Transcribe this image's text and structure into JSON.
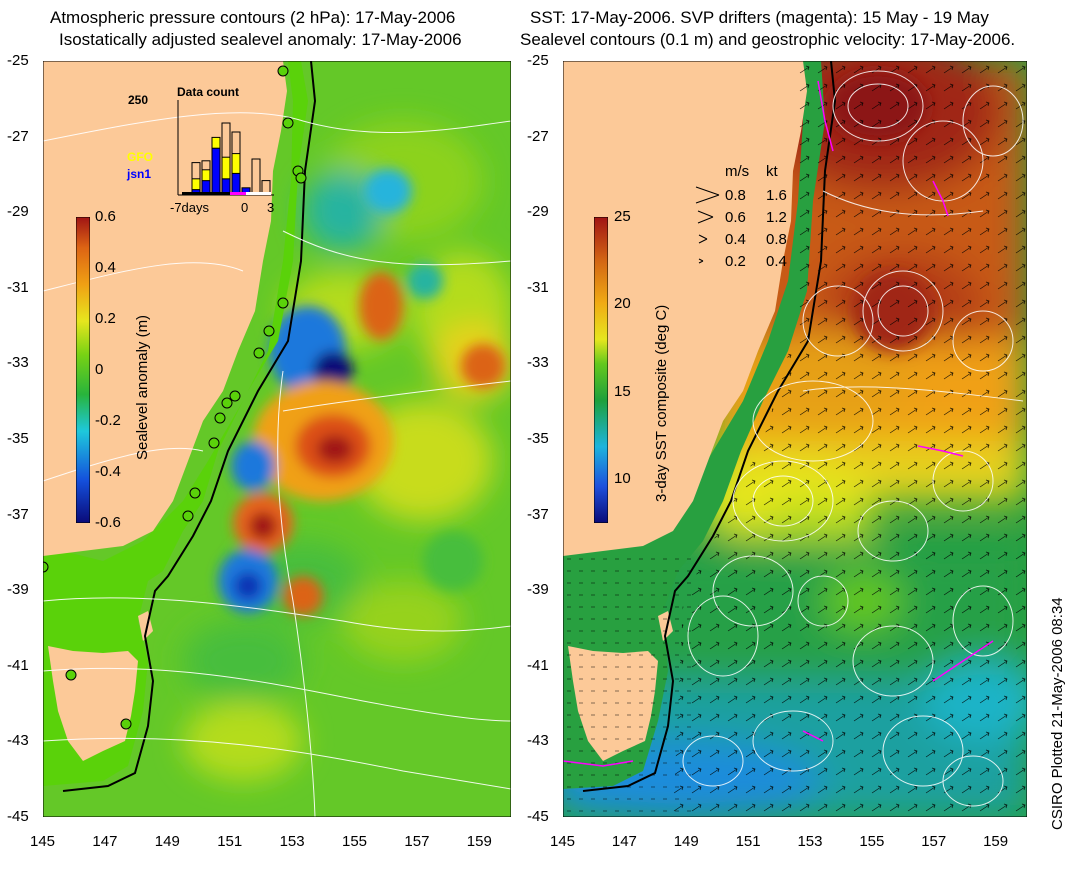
{
  "left_panel": {
    "title_line1": "Atmospheric pressure contours (2 hPa): 17-May-2006",
    "title_line2": "Isostatically adjusted sealevel anomaly: 17-May-2006",
    "colorbar": {
      "title": "Sealevel anomaly (m)",
      "ticks": [
        "0.6",
        "0.4",
        "0.2",
        "0",
        "-0.2",
        "-0.4",
        "-0.6"
      ]
    },
    "inset": {
      "title": "Data count",
      "ymax_label": "250",
      "series": [
        {
          "name": "GFO",
          "color": "#ffff00"
        },
        {
          "name": "jsn1",
          "color": "#0000ff"
        }
      ],
      "x_labels": [
        "-7days",
        "0",
        "3"
      ],
      "days": [
        -6,
        -5,
        -4,
        -3,
        -2,
        -1,
        0,
        1,
        2
      ],
      "gfo": [
        0,
        30,
        30,
        30,
        60,
        55,
        0,
        0,
        0
      ],
      "jsn1": [
        0,
        15,
        40,
        130,
        45,
        60,
        20,
        0,
        0
      ],
      "total": [
        0,
        90,
        95,
        145,
        200,
        175,
        15,
        100,
        40
      ]
    },
    "y_ticks": [
      "-25",
      "-27",
      "-29",
      "-31",
      "-33",
      "-35",
      "-37",
      "-39",
      "-41",
      "-43",
      "-45"
    ],
    "x_ticks": [
      "145",
      "147",
      "149",
      "151",
      "153",
      "155",
      "157",
      "159"
    ]
  },
  "right_panel": {
    "title_line1": "SST: 17-May-2006. SVP drifters (magenta): 15 May - 19 May",
    "title_line2": "Sealevel contours (0.1 m) and geostrophic velocity: 17-May-2006.",
    "colorbar": {
      "title": "3-day SST composite (deg C)",
      "ticks": [
        "25",
        "20",
        "15",
        "10"
      ]
    },
    "velocity_legend": {
      "header_ms": "m/s",
      "header_kt": "kt",
      "rows": [
        {
          "ms": "0.8",
          "kt": "1.6"
        },
        {
          "ms": "0.6",
          "kt": "1.2"
        },
        {
          "ms": "0.4",
          "kt": "0.8"
        },
        {
          "ms": "0.2",
          "kt": "0.4"
        }
      ]
    },
    "y_ticks": [
      "-25",
      "-27",
      "-29",
      "-31",
      "-33",
      "-35",
      "-37",
      "-39",
      "-41",
      "-43",
      "-45"
    ],
    "x_ticks": [
      "145",
      "147",
      "149",
      "151",
      "153",
      "155",
      "157",
      "159"
    ]
  },
  "credit": "CSIRO Plotted 21-May-2006 08:34",
  "colors": {
    "land": "#fcc998",
    "shelf": "#5ad20a",
    "anomaly_scale": [
      "#0a0a78",
      "#1450dc",
      "#1ec8dc",
      "#28b43c",
      "#78d214",
      "#e6e61e",
      "#f0a014",
      "#dc6414",
      "#a01414"
    ],
    "sst_scale": [
      "#0a0a78",
      "#1e50dc",
      "#1eb4dc",
      "#1ea03c",
      "#64c81e",
      "#e6e61e",
      "#f0aa14",
      "#d26414",
      "#a01414"
    ],
    "drifter": "#ff00ff"
  }
}
